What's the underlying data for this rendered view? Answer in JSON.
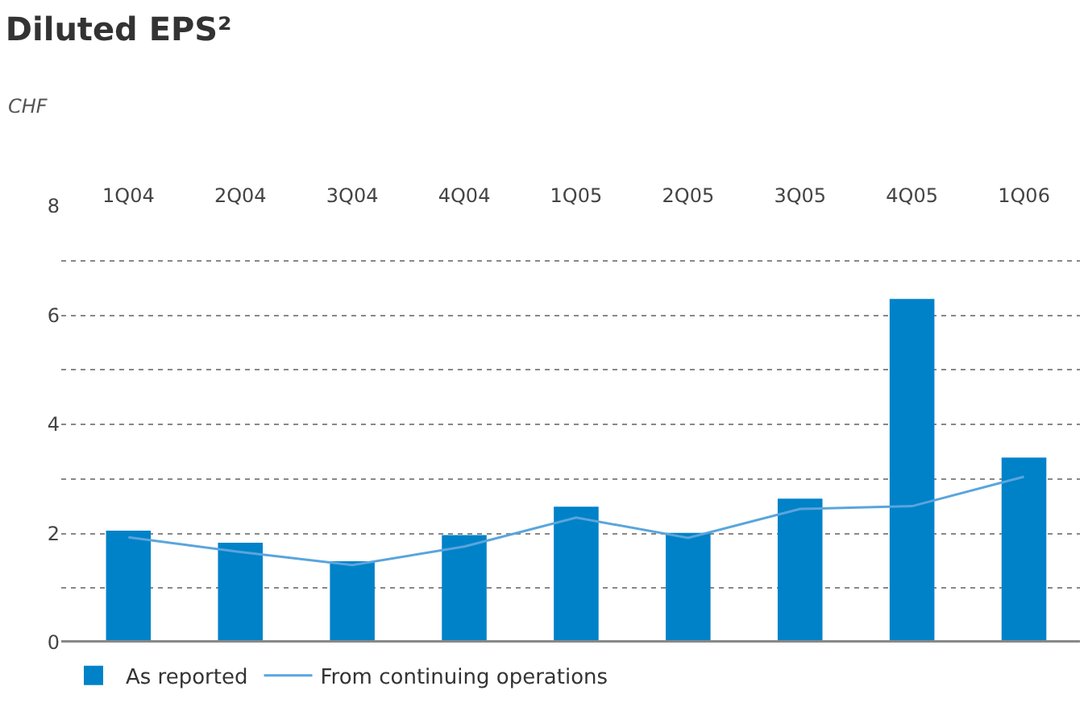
{
  "chart_data": {
    "type": "bar",
    "title": "Diluted EPS²",
    "subtitle": "CHF",
    "categories": [
      "1Q04",
      "2Q04",
      "3Q04",
      "4Q04",
      "1Q05",
      "2Q05",
      "3Q05",
      "4Q05",
      "1Q06"
    ],
    "series": [
      {
        "name": "As reported",
        "color": "#0082c8",
        "values": [
          2.05,
          1.83,
          1.49,
          1.97,
          2.49,
          2.01,
          2.64,
          6.3,
          3.39
        ]
      },
      {
        "name": "From continuing operations",
        "type": "line",
        "color": "#5aa5dc",
        "values": [
          1.93,
          1.66,
          1.42,
          1.76,
          2.29,
          1.92,
          2.45,
          2.5,
          3.04
        ]
      }
    ],
    "ylim": [
      0,
      8
    ],
    "yticks": [
      0,
      {
        "value": 1,
        "label": null
      },
      2,
      {
        "value": 3,
        "label": null
      },
      4,
      {
        "value": 5,
        "label": null
      },
      6,
      {
        "value": 7,
        "label": null
      },
      8
    ],
    "grid": "y",
    "legend": "bottom left",
    "marker": "none",
    "line_style": "solid"
  }
}
